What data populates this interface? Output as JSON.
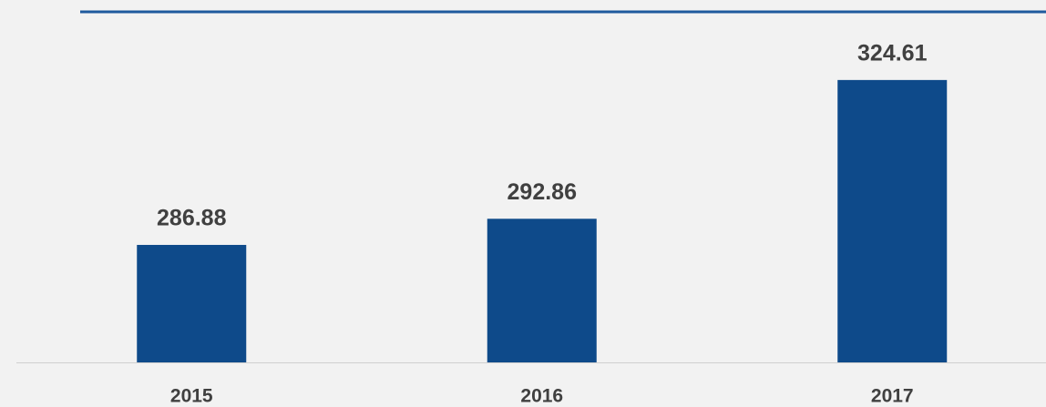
{
  "chart_data": {
    "type": "bar",
    "categories": [
      "2015",
      "2016",
      "2017"
    ],
    "values": [
      286.88,
      292.86,
      324.61
    ],
    "color": "#0e4a8a",
    "ylim": [
      260,
      340
    ],
    "data_labels": true
  }
}
